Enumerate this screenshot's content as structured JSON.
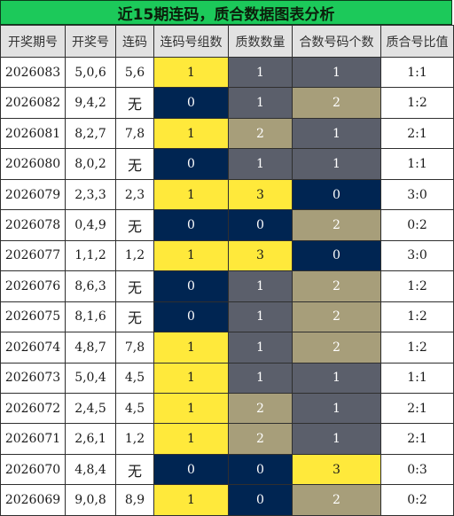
{
  "title": "近15期连码，质合数据图表分析",
  "colors": {
    "yellow": "#ffe93b",
    "navy": "#002552",
    "gray": "#5b5f6b",
    "olive": "#a79e7a",
    "title_bg": "#1cc95a"
  },
  "headers": [
    "开奖期号",
    "开奖号",
    "连码",
    "连码号组数",
    "质数数量",
    "合数号码个数",
    "质合号比值"
  ],
  "rows": [
    {
      "issue": "2026083",
      "numbers": "5,0,6",
      "lian": "5,6",
      "groups": {
        "v": "1",
        "c": "yellow"
      },
      "prime": {
        "v": "1",
        "c": "gray"
      },
      "composite": {
        "v": "1",
        "c": "gray"
      },
      "ratio": "1:1"
    },
    {
      "issue": "2026082",
      "numbers": "9,4,2",
      "lian": "无",
      "groups": {
        "v": "0",
        "c": "navy"
      },
      "prime": {
        "v": "1",
        "c": "gray"
      },
      "composite": {
        "v": "2",
        "c": "olive"
      },
      "ratio": "1:2"
    },
    {
      "issue": "2026081",
      "numbers": "8,2,7",
      "lian": "7,8",
      "groups": {
        "v": "1",
        "c": "yellow"
      },
      "prime": {
        "v": "2",
        "c": "olive"
      },
      "composite": {
        "v": "1",
        "c": "gray"
      },
      "ratio": "2:1"
    },
    {
      "issue": "2026080",
      "numbers": "8,0,2",
      "lian": "无",
      "groups": {
        "v": "0",
        "c": "navy"
      },
      "prime": {
        "v": "1",
        "c": "gray"
      },
      "composite": {
        "v": "1",
        "c": "gray"
      },
      "ratio": "1:1"
    },
    {
      "issue": "2026079",
      "numbers": "2,3,3",
      "lian": "2,3",
      "groups": {
        "v": "1",
        "c": "yellow"
      },
      "prime": {
        "v": "3",
        "c": "yellow"
      },
      "composite": {
        "v": "0",
        "c": "navy"
      },
      "ratio": "3:0"
    },
    {
      "issue": "2026078",
      "numbers": "0,4,9",
      "lian": "无",
      "groups": {
        "v": "0",
        "c": "navy"
      },
      "prime": {
        "v": "0",
        "c": "navy"
      },
      "composite": {
        "v": "2",
        "c": "olive"
      },
      "ratio": "0:2"
    },
    {
      "issue": "2026077",
      "numbers": "1,1,2",
      "lian": "1,2",
      "groups": {
        "v": "1",
        "c": "yellow"
      },
      "prime": {
        "v": "3",
        "c": "yellow"
      },
      "composite": {
        "v": "0",
        "c": "navy"
      },
      "ratio": "3:0"
    },
    {
      "issue": "2026076",
      "numbers": "8,6,3",
      "lian": "无",
      "groups": {
        "v": "0",
        "c": "navy"
      },
      "prime": {
        "v": "1",
        "c": "gray"
      },
      "composite": {
        "v": "2",
        "c": "olive"
      },
      "ratio": "1:2"
    },
    {
      "issue": "2026075",
      "numbers": "8,1,6",
      "lian": "无",
      "groups": {
        "v": "0",
        "c": "navy"
      },
      "prime": {
        "v": "1",
        "c": "gray"
      },
      "composite": {
        "v": "2",
        "c": "olive"
      },
      "ratio": "1:2"
    },
    {
      "issue": "2026074",
      "numbers": "4,8,7",
      "lian": "7,8",
      "groups": {
        "v": "1",
        "c": "yellow"
      },
      "prime": {
        "v": "1",
        "c": "gray"
      },
      "composite": {
        "v": "2",
        "c": "olive"
      },
      "ratio": "1:2"
    },
    {
      "issue": "2026073",
      "numbers": "5,0,4",
      "lian": "4,5",
      "groups": {
        "v": "1",
        "c": "yellow"
      },
      "prime": {
        "v": "1",
        "c": "gray"
      },
      "composite": {
        "v": "1",
        "c": "gray"
      },
      "ratio": "1:1"
    },
    {
      "issue": "2026072",
      "numbers": "2,4,5",
      "lian": "4,5",
      "groups": {
        "v": "1",
        "c": "yellow"
      },
      "prime": {
        "v": "2",
        "c": "olive"
      },
      "composite": {
        "v": "1",
        "c": "gray"
      },
      "ratio": "2:1"
    },
    {
      "issue": "2026071",
      "numbers": "2,6,1",
      "lian": "1,2",
      "groups": {
        "v": "1",
        "c": "yellow"
      },
      "prime": {
        "v": "2",
        "c": "olive"
      },
      "composite": {
        "v": "1",
        "c": "gray"
      },
      "ratio": "2:1"
    },
    {
      "issue": "2026070",
      "numbers": "4,8,4",
      "lian": "无",
      "groups": {
        "v": "0",
        "c": "navy"
      },
      "prime": {
        "v": "0",
        "c": "navy"
      },
      "composite": {
        "v": "3",
        "c": "yellow"
      },
      "ratio": "0:3"
    },
    {
      "issue": "2026069",
      "numbers": "9,0,8",
      "lian": "8,9",
      "groups": {
        "v": "1",
        "c": "yellow"
      },
      "prime": {
        "v": "0",
        "c": "navy"
      },
      "composite": {
        "v": "2",
        "c": "olive"
      },
      "ratio": "0:2"
    }
  ]
}
